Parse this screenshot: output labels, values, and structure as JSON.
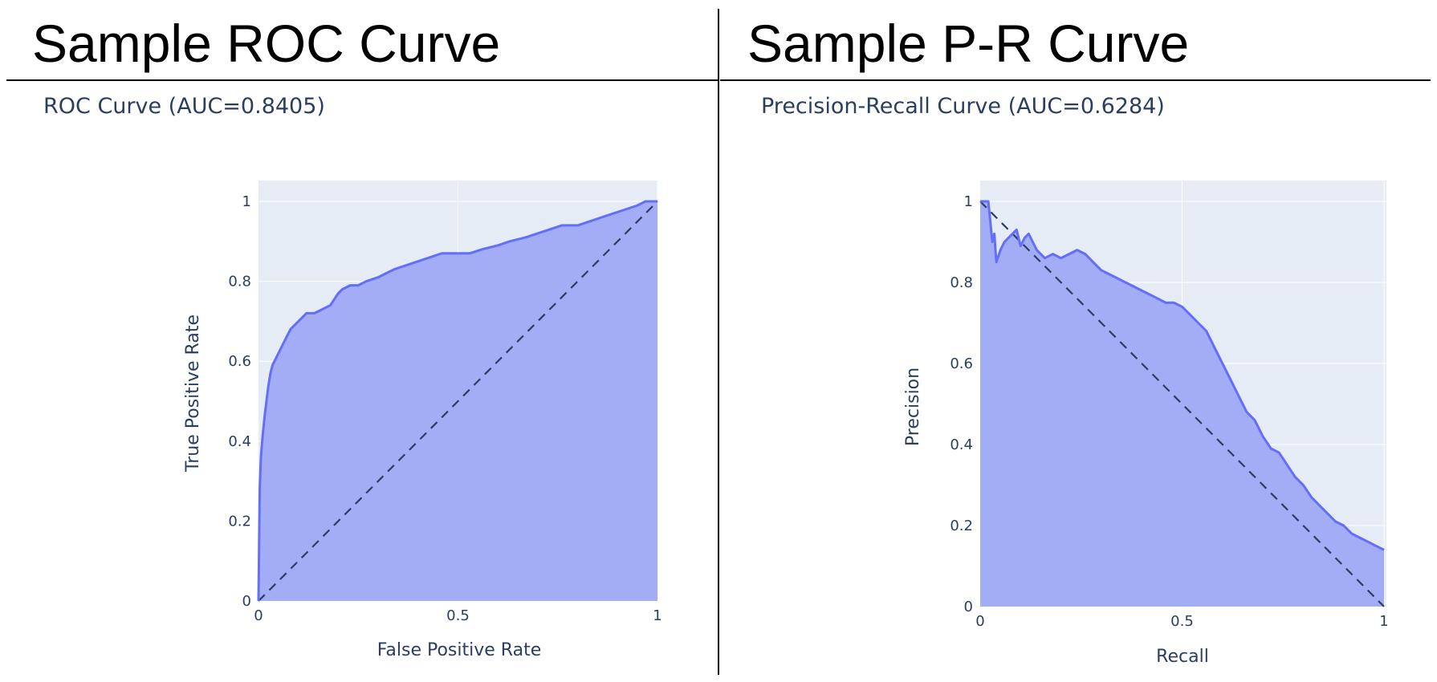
{
  "slides": {
    "left_heading": "Sample ROC Curve",
    "right_heading": "Sample P-R Curve"
  },
  "colors": {
    "plot_bg": "#e5ecf6",
    "grid": "#ffffff",
    "curve": "#636efa",
    "fill": "#a3adf5",
    "reference": "#2a3f5f",
    "text": "#2a3f5f"
  },
  "chart_data": [
    {
      "type": "area",
      "title": "ROC Curve (AUC=0.8405)",
      "xlabel": "False Positive Rate",
      "ylabel": "True Positive Rate",
      "xlim": [
        0,
        1
      ],
      "ylim": [
        0,
        1
      ],
      "xticks": [
        0,
        0.5,
        1
      ],
      "xtick_labels": [
        "0",
        "0.5",
        "1"
      ],
      "yticks": [
        0,
        0.2,
        0.4,
        0.6,
        0.8,
        1
      ],
      "ytick_labels": [
        "0",
        "0.2",
        "0.4",
        "0.6",
        "0.8",
        "1"
      ],
      "grid": true,
      "legend": false,
      "reference_line": {
        "x": [
          0,
          1
        ],
        "y": [
          0,
          1
        ],
        "style": "dashed"
      },
      "series": [
        {
          "x": [
            0,
            0.003,
            0.006,
            0.01,
            0.015,
            0.02,
            0.025,
            0.03,
            0.035,
            0.04,
            0.05,
            0.06,
            0.07,
            0.08,
            0.09,
            0.1,
            0.11,
            0.12,
            0.13,
            0.14,
            0.16,
            0.18,
            0.2,
            0.21,
            0.23,
            0.25,
            0.27,
            0.3,
            0.32,
            0.34,
            0.37,
            0.4,
            0.43,
            0.46,
            0.5,
            0.53,
            0.56,
            0.6,
            0.63,
            0.67,
            0.7,
            0.73,
            0.76,
            0.8,
            0.83,
            0.86,
            0.89,
            0.92,
            0.95,
            0.97,
            1
          ],
          "y": [
            0,
            0.28,
            0.36,
            0.41,
            0.46,
            0.5,
            0.54,
            0.57,
            0.59,
            0.6,
            0.62,
            0.64,
            0.66,
            0.68,
            0.69,
            0.7,
            0.71,
            0.72,
            0.72,
            0.72,
            0.73,
            0.74,
            0.77,
            0.78,
            0.79,
            0.79,
            0.8,
            0.81,
            0.82,
            0.83,
            0.84,
            0.85,
            0.86,
            0.87,
            0.87,
            0.87,
            0.88,
            0.89,
            0.9,
            0.91,
            0.92,
            0.93,
            0.94,
            0.94,
            0.95,
            0.96,
            0.97,
            0.98,
            0.99,
            1,
            1
          ]
        }
      ]
    },
    {
      "type": "area",
      "title": "Precision-Recall Curve (AUC=0.6284)",
      "xlabel": "Recall",
      "ylabel": "Precision",
      "xlim": [
        0,
        1
      ],
      "ylim": [
        0,
        1
      ],
      "xticks": [
        0,
        0.5,
        1
      ],
      "xtick_labels": [
        "0",
        "0.5",
        "1"
      ],
      "yticks": [
        0,
        0.2,
        0.4,
        0.6,
        0.8,
        1
      ],
      "ytick_labels": [
        "0",
        "0.2",
        "0.4",
        "0.6",
        "0.8",
        "1"
      ],
      "grid": true,
      "legend": false,
      "reference_line": {
        "x": [
          0,
          1
        ],
        "y": [
          1,
          0
        ],
        "style": "dashed"
      },
      "series": [
        {
          "x": [
            0,
            0.01,
            0.02,
            0.025,
            0.03,
            0.035,
            0.04,
            0.05,
            0.06,
            0.07,
            0.08,
            0.09,
            0.1,
            0.11,
            0.12,
            0.13,
            0.14,
            0.16,
            0.18,
            0.2,
            0.22,
            0.24,
            0.26,
            0.28,
            0.3,
            0.32,
            0.34,
            0.36,
            0.38,
            0.4,
            0.42,
            0.44,
            0.46,
            0.48,
            0.5,
            0.52,
            0.54,
            0.56,
            0.58,
            0.6,
            0.62,
            0.64,
            0.66,
            0.68,
            0.7,
            0.72,
            0.74,
            0.76,
            0.78,
            0.8,
            0.82,
            0.84,
            0.86,
            0.88,
            0.9,
            0.92,
            0.94,
            0.96,
            0.98,
            1
          ],
          "y": [
            1,
            1,
            1,
            0.95,
            0.9,
            0.92,
            0.85,
            0.88,
            0.9,
            0.91,
            0.92,
            0.93,
            0.89,
            0.91,
            0.92,
            0.9,
            0.88,
            0.86,
            0.87,
            0.86,
            0.87,
            0.88,
            0.87,
            0.85,
            0.83,
            0.82,
            0.81,
            0.8,
            0.79,
            0.78,
            0.77,
            0.76,
            0.75,
            0.75,
            0.74,
            0.72,
            0.7,
            0.68,
            0.64,
            0.6,
            0.56,
            0.52,
            0.48,
            0.46,
            0.42,
            0.39,
            0.38,
            0.35,
            0.32,
            0.3,
            0.27,
            0.25,
            0.23,
            0.21,
            0.2,
            0.18,
            0.17,
            0.16,
            0.15,
            0.14
          ]
        }
      ]
    }
  ]
}
